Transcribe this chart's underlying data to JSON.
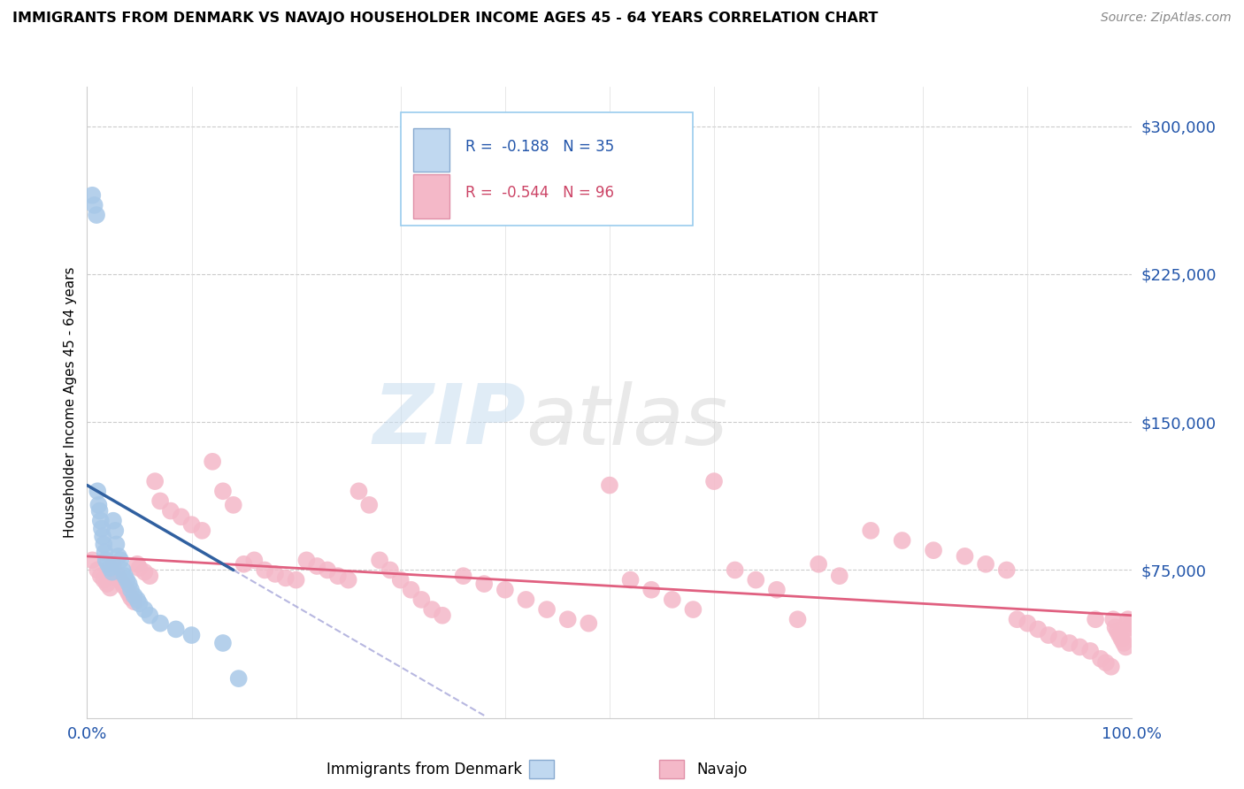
{
  "title": "IMMIGRANTS FROM DENMARK VS NAVAJO HOUSEHOLDER INCOME AGES 45 - 64 YEARS CORRELATION CHART",
  "source": "Source: ZipAtlas.com",
  "ylabel": "Householder Income Ages 45 - 64 years",
  "right_yticks": [
    "$300,000",
    "$225,000",
    "$150,000",
    "$75,000"
  ],
  "right_ytick_vals": [
    300000,
    225000,
    150000,
    75000
  ],
  "ylim": [
    0,
    320000
  ],
  "xlim": [
    0.0,
    1.0
  ],
  "legend_denmark": "R =  -0.188   N = 35",
  "legend_navajo": "R =  -0.544   N = 96",
  "denmark_color": "#a8c8e8",
  "navajo_color": "#f4b8c8",
  "denmark_line_color": "#3060a0",
  "navajo_line_color": "#e06080",
  "dk_x": [
    0.005,
    0.007,
    0.009,
    0.01,
    0.011,
    0.012,
    0.013,
    0.014,
    0.015,
    0.016,
    0.017,
    0.018,
    0.02,
    0.022,
    0.024,
    0.025,
    0.027,
    0.028,
    0.03,
    0.032,
    0.034,
    0.036,
    0.038,
    0.04,
    0.042,
    0.045,
    0.048,
    0.05,
    0.055,
    0.06,
    0.07,
    0.085,
    0.1,
    0.13,
    0.145
  ],
  "dk_y": [
    265000,
    260000,
    255000,
    115000,
    108000,
    105000,
    100000,
    96000,
    92000,
    88000,
    84000,
    80000,
    78000,
    76000,
    74000,
    100000,
    95000,
    88000,
    82000,
    80000,
    75000,
    72000,
    70000,
    68000,
    65000,
    62000,
    60000,
    58000,
    55000,
    52000,
    48000,
    45000,
    42000,
    38000,
    20000
  ],
  "nav_x": [
    0.005,
    0.01,
    0.013,
    0.016,
    0.019,
    0.022,
    0.025,
    0.028,
    0.03,
    0.033,
    0.035,
    0.038,
    0.04,
    0.042,
    0.045,
    0.048,
    0.05,
    0.055,
    0.06,
    0.065,
    0.07,
    0.08,
    0.09,
    0.1,
    0.11,
    0.12,
    0.13,
    0.14,
    0.15,
    0.16,
    0.17,
    0.18,
    0.19,
    0.2,
    0.21,
    0.22,
    0.23,
    0.24,
    0.25,
    0.26,
    0.27,
    0.28,
    0.29,
    0.3,
    0.31,
    0.32,
    0.33,
    0.34,
    0.36,
    0.38,
    0.4,
    0.42,
    0.44,
    0.46,
    0.48,
    0.5,
    0.52,
    0.54,
    0.56,
    0.58,
    0.6,
    0.62,
    0.64,
    0.66,
    0.68,
    0.7,
    0.72,
    0.75,
    0.78,
    0.81,
    0.84,
    0.86,
    0.88,
    0.89,
    0.9,
    0.91,
    0.92,
    0.93,
    0.94,
    0.95,
    0.96,
    0.965,
    0.97,
    0.975,
    0.98,
    0.982,
    0.984,
    0.986,
    0.988,
    0.99,
    0.992,
    0.994,
    0.996,
    0.997,
    0.998,
    0.999
  ],
  "nav_y": [
    80000,
    75000,
    72000,
    70000,
    68000,
    66000,
    78000,
    73000,
    71000,
    69000,
    67000,
    65000,
    63000,
    61000,
    59000,
    78000,
    76000,
    74000,
    72000,
    120000,
    110000,
    105000,
    102000,
    98000,
    95000,
    130000,
    115000,
    108000,
    78000,
    80000,
    75000,
    73000,
    71000,
    70000,
    80000,
    77000,
    75000,
    72000,
    70000,
    115000,
    108000,
    80000,
    75000,
    70000,
    65000,
    60000,
    55000,
    52000,
    72000,
    68000,
    65000,
    60000,
    55000,
    50000,
    48000,
    118000,
    70000,
    65000,
    60000,
    55000,
    120000,
    75000,
    70000,
    65000,
    50000,
    78000,
    72000,
    95000,
    90000,
    85000,
    82000,
    78000,
    75000,
    50000,
    48000,
    45000,
    42000,
    40000,
    38000,
    36000,
    34000,
    50000,
    30000,
    28000,
    26000,
    50000,
    46000,
    44000,
    42000,
    40000,
    38000,
    36000,
    50000,
    48000,
    46000,
    44000
  ]
}
